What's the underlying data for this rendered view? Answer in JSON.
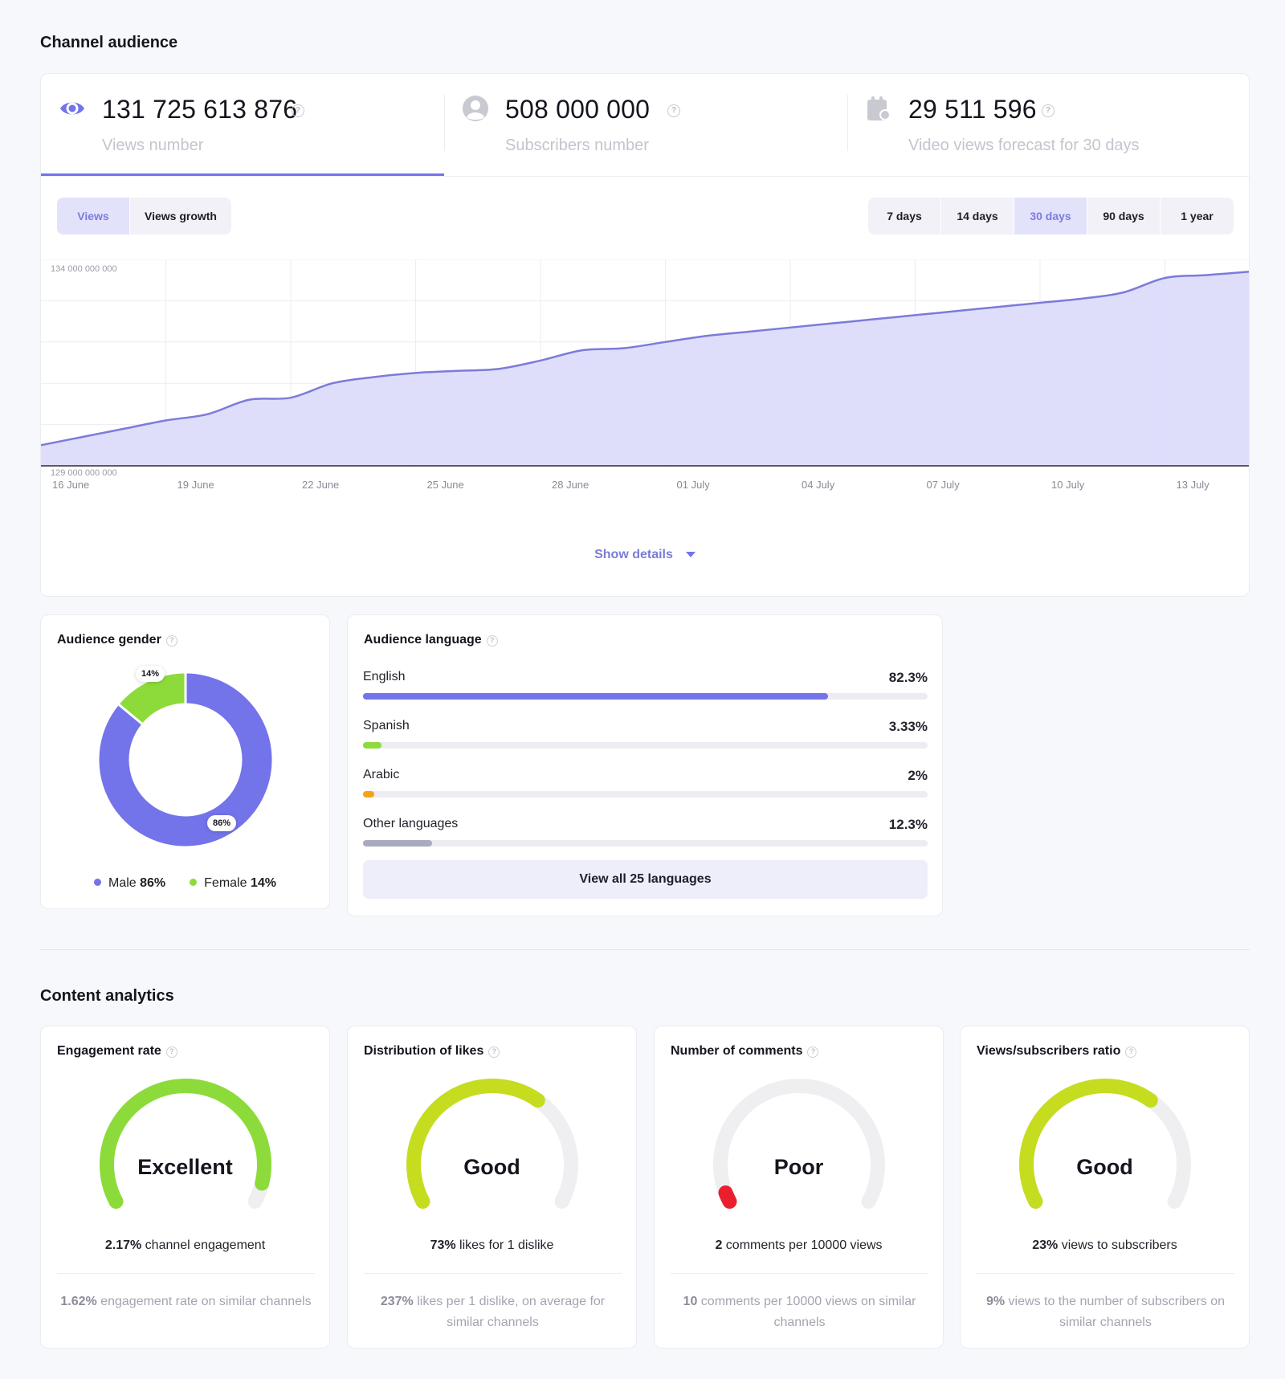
{
  "channel_audience": {
    "title": "Channel audience",
    "stats": [
      {
        "value": "131 725 613 876",
        "label": "Views number",
        "icon": "eye-icon"
      },
      {
        "value": "508 000 000",
        "label": "Subscribers number",
        "icon": "user-icon"
      },
      {
        "value": "29 511 596",
        "label": "Video views forecast for 30 days",
        "icon": "calendar-icon"
      }
    ],
    "metric_toggle": {
      "options": [
        "Views",
        "Views growth"
      ],
      "selected": "Views"
    },
    "range_toggle": {
      "options": [
        "7 days",
        "14 days",
        "30 days",
        "90 days",
        "1 year"
      ],
      "selected": "30 days"
    },
    "show_details": "Show details"
  },
  "chart_data": {
    "type": "area",
    "y_top_label": "134 000 000 000",
    "y_bottom_label": "129 000 000 000",
    "ylim": [
      129000000000,
      134000000000
    ],
    "grid": true,
    "x_tick_labels": [
      "16 June",
      "19 June",
      "22 June",
      "25 June",
      "28 June",
      "01 July",
      "04 July",
      "07 July",
      "10 July",
      "13 July"
    ],
    "series": [
      {
        "x": [
          "16 June",
          "17 June",
          "18 June",
          "19 June",
          "20 June",
          "21 June",
          "22 June",
          "23 June",
          "24 June",
          "25 June",
          "26 June",
          "27 June",
          "28 June",
          "29 June",
          "30 June",
          "01 July",
          "02 July",
          "03 July",
          "04 July",
          "05 July",
          "06 July",
          "07 July",
          "08 July",
          "09 July",
          "10 July",
          "11 July",
          "12 July",
          "13 July",
          "14 July",
          "15 July"
        ],
        "values": [
          129500000000,
          129700000000,
          129900000000,
          130100000000,
          130250000000,
          130600000000,
          130650000000,
          131000000000,
          131150000000,
          131250000000,
          131300000000,
          131350000000,
          131550000000,
          131800000000,
          131850000000,
          132000000000,
          132150000000,
          132250000000,
          132350000000,
          132450000000,
          132550000000,
          132650000000,
          132750000000,
          132850000000,
          132950000000,
          133050000000,
          133200000000,
          133550000000,
          133620000000,
          133700000000
        ]
      }
    ],
    "colors": {
      "line": "#7b7bdb",
      "fill": "#dcdcfb"
    }
  },
  "audience_gender": {
    "title": "Audience gender",
    "male_pct": 86,
    "female_pct": 14,
    "male_bubble": "86%",
    "female_bubble": "14%",
    "legend": [
      {
        "label": "Male",
        "value": "86%",
        "color": "#7373ea"
      },
      {
        "label": "Female",
        "value": "14%",
        "color": "#8ddb3a"
      }
    ]
  },
  "audience_language": {
    "title": "Audience language",
    "rows": [
      {
        "name": "English",
        "pct_label": "82.3%",
        "fraction": 0.823,
        "color": "#7373ea"
      },
      {
        "name": "Spanish",
        "pct_label": "3.33%",
        "fraction": 0.0333,
        "color": "#8ddb3a"
      },
      {
        "name": "Arabic",
        "pct_label": "2%",
        "fraction": 0.02,
        "color": "#f5a31b"
      },
      {
        "name": "Other languages",
        "pct_label": "12.3%",
        "fraction": 0.123,
        "color": "#a9aac0"
      }
    ],
    "view_all": "View all 25 languages"
  },
  "content_analytics": {
    "title": "Content analytics",
    "cards": [
      {
        "title": "Engagement rate",
        "rating": "Excellent",
        "level": 0.94,
        "color": "#8ddb3a",
        "main_value": "2.17%",
        "main_text": " channel engagement",
        "sub_value": "1.62%",
        "sub_text": " engagement rate on similar channels"
      },
      {
        "title": "Distribution of likes",
        "rating": "Good",
        "level": 0.65,
        "color": "#c6dc1f",
        "main_value": "73%",
        "main_text": " likes for 1 dislike",
        "sub_value": "237%",
        "sub_text": " likes per 1 dislike, on average for similar channels"
      },
      {
        "title": "Number of comments",
        "rating": "Poor",
        "level": 0.03,
        "color": "#ea1f2e",
        "main_value": "2",
        "main_text": " comments per 10000 views",
        "sub_value": "10",
        "sub_text": " comments per 10000 views on similar channels"
      },
      {
        "title": "Views/subscribers ratio",
        "rating": "Good",
        "level": 0.65,
        "color": "#c6dc1f",
        "main_value": "23%",
        "main_text": " views to subscribers",
        "sub_value": "9%",
        "sub_text": " views to the number of subscribers on similar channels"
      }
    ]
  }
}
